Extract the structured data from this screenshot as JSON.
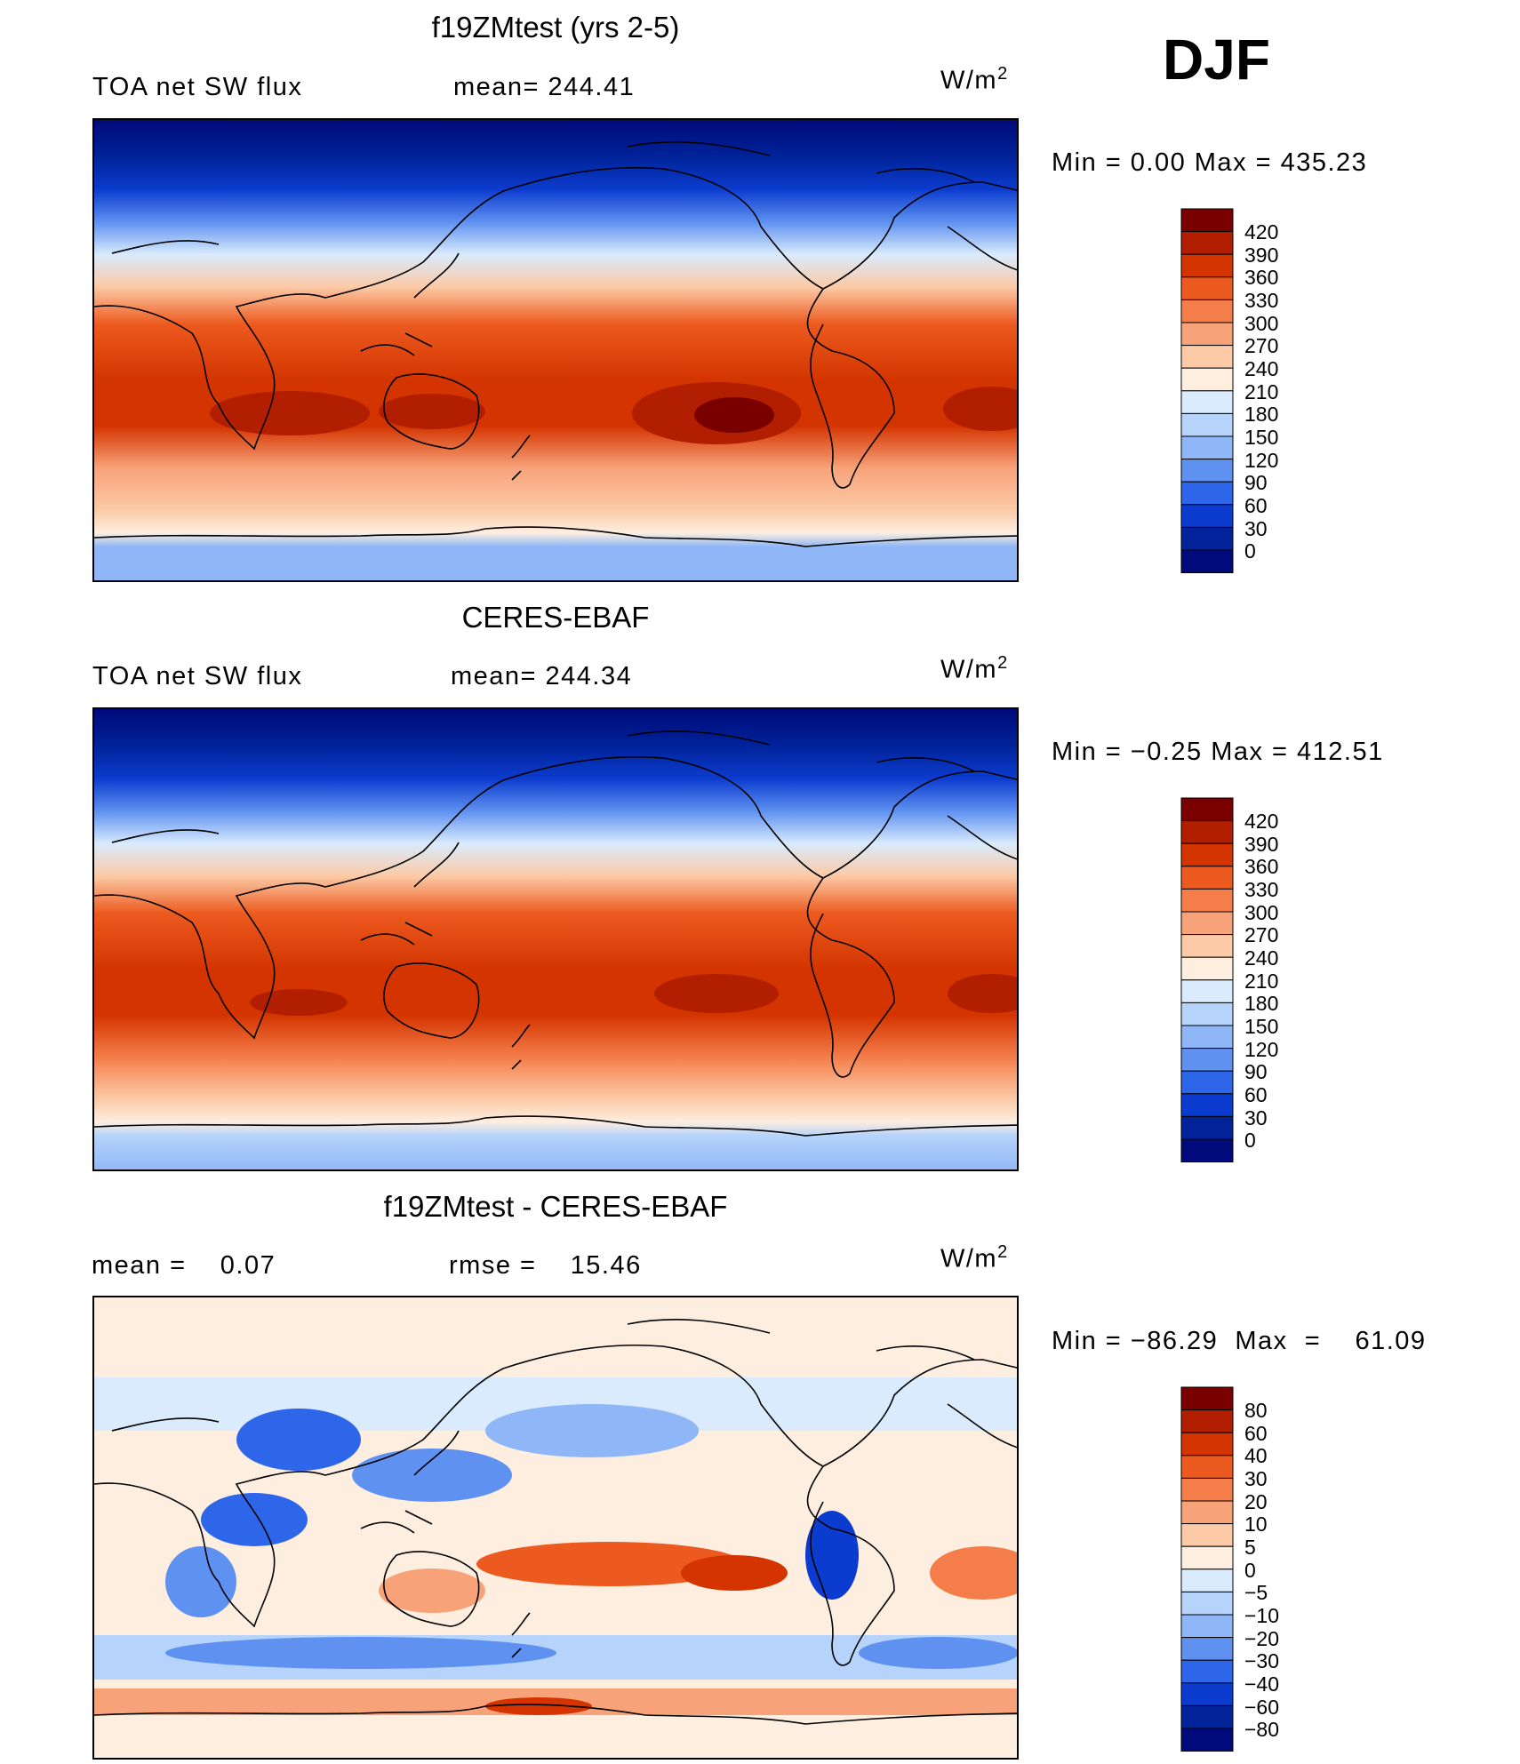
{
  "season": "DJF",
  "panels": [
    {
      "id": "model",
      "title": "f19ZMtest (yrs 2-5)",
      "left_label": "TOA net SW flux",
      "center_label": "mean= 244.41",
      "units": "W/m",
      "units_sup": "2",
      "minmax": "Min =    0.00  Max  =  435.23",
      "colorbar_labels": [
        "420",
        "390",
        "360",
        "330",
        "300",
        "270",
        "240",
        "210",
        "180",
        "150",
        "120",
        "90",
        "60",
        "30",
        "0"
      ],
      "colors": [
        "#7a0000",
        "#b21e00",
        "#d43500",
        "#ec5a1f",
        "#f47d4a",
        "#f8a27a",
        "#fccaa6",
        "#fdeee0",
        "#d9ebfd",
        "#b5d3fb",
        "#8fb7f7",
        "#5f91f1",
        "#2e66ea",
        "#0c3ccf",
        "#00239a",
        "#000a7a"
      ]
    },
    {
      "id": "obs",
      "title": "CERES-EBAF",
      "left_label": "TOA net SW flux",
      "center_label": "mean= 244.34",
      "units": "W/m",
      "units_sup": "2",
      "minmax": "Min =   −0.25  Max  =  412.51",
      "colorbar_labels": [
        "420",
        "390",
        "360",
        "330",
        "300",
        "270",
        "240",
        "210",
        "180",
        "150",
        "120",
        "90",
        "60",
        "30",
        "0"
      ],
      "colors": [
        "#7a0000",
        "#b21e00",
        "#d43500",
        "#ec5a1f",
        "#f47d4a",
        "#f8a27a",
        "#fccaa6",
        "#fdeee0",
        "#d9ebfd",
        "#b5d3fb",
        "#8fb7f7",
        "#5f91f1",
        "#2e66ea",
        "#0c3ccf",
        "#00239a",
        "#000a7a"
      ]
    },
    {
      "id": "diff",
      "title": "f19ZMtest - CERES-EBAF",
      "left_label": "mean =    0.07",
      "center_label": "rmse =    15.46",
      "units": "W/m",
      "units_sup": "2",
      "minmax": "Min = −86.29  Max  =    61.09",
      "colorbar_labels": [
        "80",
        "60",
        "40",
        "30",
        "20",
        "10",
        "5",
        "0",
        "−5",
        "−10",
        "−20",
        "−30",
        "−40",
        "−60",
        "−80"
      ],
      "colors": [
        "#7a0000",
        "#b21e00",
        "#d43500",
        "#ec5a1f",
        "#f47d4a",
        "#f8a27a",
        "#fccaa6",
        "#fdeee0",
        "#d9ebfd",
        "#b5d3fb",
        "#8fb7f7",
        "#5f91f1",
        "#2e66ea",
        "#0c3ccf",
        "#00239a",
        "#000a7a"
      ]
    }
  ]
}
